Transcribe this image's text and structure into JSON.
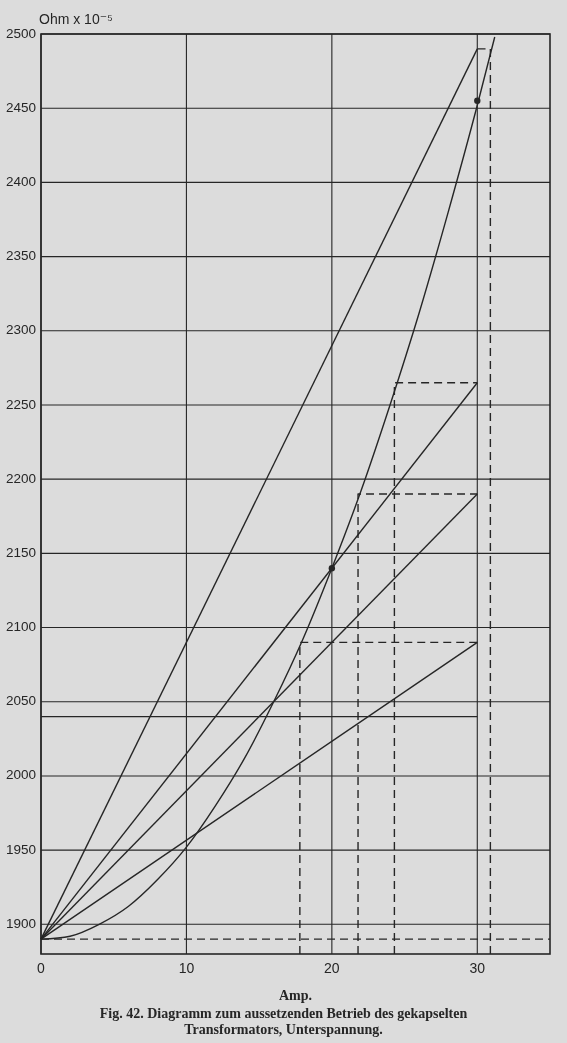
{
  "chart_data": {
    "type": "line",
    "ylabel": "Ohm x 10⁻⁵",
    "xlabel": "Amp.",
    "annotations": [
      "Fig. 42. Diagramm zum aussetzenden Betrieb des gekapselten Transformators, Unterspannung."
    ],
    "xlim": [
      0,
      35
    ],
    "xticks": [
      0,
      10,
      20,
      30
    ],
    "ylim": [
      1880,
      2500
    ],
    "yticks": [
      1900,
      1950,
      2000,
      2050,
      2100,
      2150,
      2200,
      2250,
      2300,
      2350,
      2400,
      2450,
      2500
    ],
    "grid": true,
    "series": [
      {
        "color": "#262626",
        "line_style": "solid",
        "x": [
          0,
          2,
          4,
          6,
          8,
          10,
          12,
          14,
          16,
          18,
          20,
          22,
          24,
          26,
          28,
          30,
          31.2
        ],
        "values": [
          1890,
          1892,
          1900,
          1912,
          1930,
          1952,
          1980,
          2012,
          2050,
          2092,
          2140,
          2192,
          2250,
          2312,
          2380,
          2452,
          2498
        ]
      },
      {
        "color": "#262626",
        "line_style": "solid",
        "x": [
          0,
          30
        ],
        "values": [
          1890,
          2490
        ]
      },
      {
        "color": "#262626",
        "line_style": "solid",
        "x": [
          0,
          30
        ],
        "values": [
          1890,
          2265
        ]
      },
      {
        "color": "#262626",
        "line_style": "solid",
        "x": [
          0,
          30
        ],
        "values": [
          1890,
          2190
        ]
      },
      {
        "color": "#262626",
        "line_style": "solid",
        "x": [
          0,
          30
        ],
        "values": [
          1890,
          2090
        ]
      },
      {
        "color": "#262626",
        "line_style": "solid",
        "x": [
          0,
          30
        ],
        "values": [
          2040,
          2040
        ]
      },
      {
        "color": "#262626",
        "line_style": "dashed",
        "x": [
          0,
          35
        ],
        "values": [
          1890,
          1890
        ]
      },
      {
        "color": "#262626",
        "line_style": "dashed",
        "x": [
          17.8,
          17.8,
          30
        ],
        "values": [
          1880,
          2090,
          2090
        ]
      },
      {
        "color": "#262626",
        "line_style": "dashed",
        "x": [
          21.8,
          21.8,
          30
        ],
        "values": [
          1880,
          2190,
          2190
        ]
      },
      {
        "color": "#262626",
        "line_style": "dashed",
        "x": [
          24.3,
          24.3,
          30
        ],
        "values": [
          1880,
          2265,
          2265
        ]
      },
      {
        "color": "#262626",
        "line_style": "dashed",
        "x": [
          30.9,
          30.9,
          30
        ],
        "values": [
          1880,
          2490,
          2490
        ]
      },
      {
        "type": "scatter",
        "color": "#262626",
        "marker": "circle",
        "x": [
          20,
          30
        ],
        "values": [
          2140,
          2455
        ]
      }
    ]
  }
}
